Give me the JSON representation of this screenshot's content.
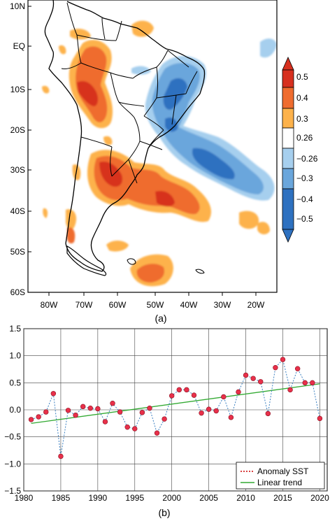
{
  "map_panel": {
    "caption": "(a)",
    "lat_labels": [
      "10N",
      "EQ",
      "10S",
      "20S",
      "30S",
      "40S",
      "50S",
      "60S"
    ],
    "lon_labels": [
      "80W",
      "70W",
      "60W",
      "50W",
      "40W",
      "30W",
      "20W"
    ],
    "colorbar_labels": [
      "0.5",
      "0.4",
      "0.3",
      "0.26",
      "−0.26",
      "−0.3",
      "−0.4",
      "−0.5"
    ],
    "colors": {
      "pos_strong": "#d7301f",
      "pos_mid": "#ef6c2f",
      "pos_weak": "#fdb24b",
      "neutral": "#ffffff",
      "neg_weak": "#a6cfee",
      "neg_mid": "#6aa6dc",
      "neg_strong": "#2e71c0"
    }
  },
  "chart_data": {
    "type": "line",
    "caption": "(b)",
    "x": [
      1981,
      1982,
      1983,
      1984,
      1985,
      1986,
      1987,
      1988,
      1989,
      1990,
      1991,
      1992,
      1993,
      1994,
      1995,
      1996,
      1997,
      1998,
      1999,
      2000,
      2001,
      2002,
      2003,
      2004,
      2005,
      2006,
      2007,
      2008,
      2009,
      2010,
      2011,
      2012,
      2013,
      2014,
      2015,
      2016,
      2017,
      2018,
      2019,
      2020
    ],
    "series": [
      {
        "name": "Anomaly SST",
        "color": "#cc0000",
        "marker_color": "#e8304a",
        "values": [
          -0.18,
          -0.13,
          -0.04,
          0.3,
          -0.86,
          -0.01,
          -0.1,
          0.06,
          0.03,
          0.02,
          -0.22,
          0.12,
          -0.04,
          -0.32,
          -0.35,
          -0.05,
          0.03,
          -0.43,
          -0.17,
          0.26,
          0.37,
          0.37,
          0.27,
          -0.06,
          0.01,
          -0.02,
          0.24,
          -0.14,
          0.33,
          0.64,
          0.58,
          0.52,
          -0.07,
          0.78,
          0.93,
          0.37,
          0.76,
          0.5,
          0.5,
          -0.16
        ]
      },
      {
        "name": "Linear trend",
        "color": "#33aa33",
        "values": [
          -0.25,
          0.48
        ],
        "x": [
          1981,
          2020
        ]
      }
    ],
    "xticks": [
      "1980",
      "1985",
      "1990",
      "1995",
      "2000",
      "2005",
      "2010",
      "2015",
      "2020"
    ],
    "yticks": [
      "1.5",
      "1.0",
      "0.5",
      "0.0",
      "−0.5",
      "−1.0",
      "−1.5"
    ],
    "xlim": [
      1980,
      2021
    ],
    "ylim": [
      -1.5,
      1.5
    ],
    "grid": true,
    "legend_position": "bottom-right"
  }
}
